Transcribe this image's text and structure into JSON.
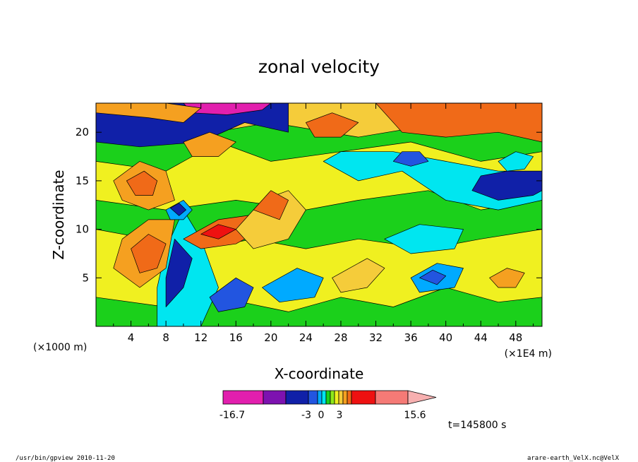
{
  "chart_data": {
    "type": "heatmap",
    "title": "zonal velocity",
    "xlabel": "X-coordinate",
    "ylabel": "Z-coordinate",
    "x_unit": "(×1000 m)",
    "x_unit_right": "(×1E4 m)",
    "xlim": [
      0,
      51
    ],
    "ylim": [
      0,
      23
    ],
    "xticks": [
      4,
      8,
      12,
      16,
      20,
      24,
      28,
      32,
      36,
      40,
      44,
      48
    ],
    "yticks": [
      5,
      10,
      15,
      20
    ],
    "colorbar": {
      "min": -16.7,
      "max": 15.6,
      "tick_labels": [
        "-16.7",
        "-3",
        "0",
        "3",
        "15.6"
      ],
      "colors": [
        "#e21fae",
        "#7d12b0",
        "#1020a8",
        "#2255e0",
        "#00aaff",
        "#00e6f0",
        "#1bd01b",
        "#8ee81a",
        "#f0f020",
        "#f5cc3a",
        "#f5a020",
        "#f06a18",
        "#ee1111",
        "#f57a76",
        "#f7b0b0"
      ]
    },
    "time_label": "t=145800 s"
  },
  "footer": {
    "left": "/usr/bin/gpview   2010-11-20",
    "right": "arare-earth_VelX.nc@VelX"
  }
}
